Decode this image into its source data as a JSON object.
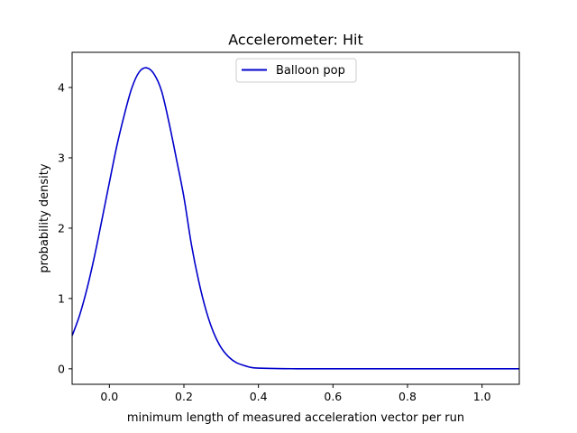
{
  "chart_data": {
    "type": "line",
    "title": "Accelerometer: Hit",
    "xlabel": "minimum length of measured acceleration vector per run",
    "ylabel": "probability density",
    "xlim": [
      -0.1,
      1.1
    ],
    "ylim": [
      -0.22,
      4.5
    ],
    "xticks": [
      0.0,
      0.2,
      0.4,
      0.6,
      0.8,
      1.0
    ],
    "xtick_labels": [
      "0.0",
      "0.2",
      "0.4",
      "0.6",
      "0.8",
      "1.0"
    ],
    "yticks": [
      0,
      1,
      2,
      3,
      4
    ],
    "ytick_labels": [
      "0",
      "1",
      "2",
      "3",
      "4"
    ],
    "grid": false,
    "legend_position": "top-center",
    "series": [
      {
        "name": "Balloon pop",
        "color": "#0000cc",
        "x": [
          -0.1,
          -0.08,
          -0.06,
          -0.04,
          -0.02,
          0.0,
          0.02,
          0.04,
          0.06,
          0.08,
          0.1,
          0.12,
          0.14,
          0.16,
          0.18,
          0.2,
          0.22,
          0.24,
          0.26,
          0.28,
          0.3,
          0.32,
          0.34,
          0.36,
          0.38,
          0.4,
          0.45,
          0.5,
          0.6,
          0.7,
          0.8,
          0.9,
          1.0,
          1.1
        ],
        "y": [
          0.47,
          0.76,
          1.14,
          1.6,
          2.12,
          2.65,
          3.17,
          3.61,
          3.99,
          4.22,
          4.28,
          4.19,
          3.95,
          3.5,
          2.98,
          2.44,
          1.77,
          1.24,
          0.82,
          0.51,
          0.3,
          0.17,
          0.09,
          0.05,
          0.02,
          0.01,
          0.003,
          0.001,
          0.0,
          0.0,
          0.0,
          0.0,
          0.0,
          0.0
        ]
      }
    ]
  }
}
